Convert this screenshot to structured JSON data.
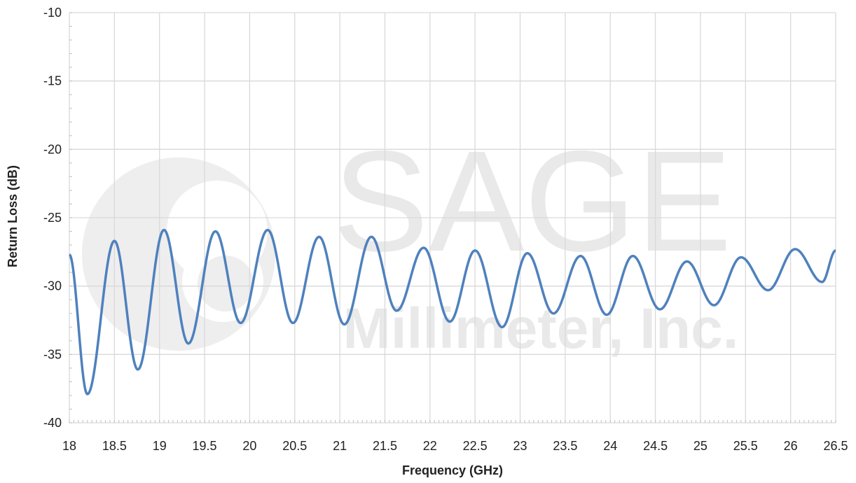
{
  "chart_data": {
    "type": "line",
    "title": "",
    "xlabel": "Frequency (GHz)",
    "ylabel": "Return Loss (dB)",
    "xlim": [
      18,
      26.5
    ],
    "ylim": [
      -40,
      -10
    ],
    "x_ticks": [
      "18",
      "18.5",
      "19",
      "19.5",
      "20",
      "20.5",
      "21",
      "21.5",
      "22",
      "22.5",
      "23",
      "23.5",
      "24",
      "24.5",
      "25",
      "25.5",
      "26",
      "26.5"
    ],
    "y_ticks": [
      "-10",
      "-15",
      "-20",
      "-25",
      "-30",
      "-35",
      "-40"
    ],
    "grid": true,
    "line_color": "#4f81bd",
    "watermark": {
      "word": "SAGE",
      "subtitle": "Millimeter, Inc."
    },
    "series": [
      {
        "extrema": [
          [
            18.0,
            -27.7
          ],
          [
            18.2,
            -37.9
          ],
          [
            18.5,
            -26.7
          ],
          [
            18.76,
            -36.1
          ],
          [
            19.05,
            -25.9
          ],
          [
            19.32,
            -34.2
          ],
          [
            19.62,
            -26.0
          ],
          [
            19.9,
            -32.7
          ],
          [
            20.2,
            -25.9
          ],
          [
            20.48,
            -32.7
          ],
          [
            20.77,
            -26.4
          ],
          [
            21.05,
            -32.8
          ],
          [
            21.35,
            -26.4
          ],
          [
            21.63,
            -31.8
          ],
          [
            21.93,
            -27.2
          ],
          [
            22.22,
            -32.6
          ],
          [
            22.5,
            -27.4
          ],
          [
            22.8,
            -33.0
          ],
          [
            23.08,
            -27.6
          ],
          [
            23.37,
            -32.0
          ],
          [
            23.67,
            -27.8
          ],
          [
            23.96,
            -32.1
          ],
          [
            24.25,
            -27.8
          ],
          [
            24.55,
            -31.7
          ],
          [
            24.85,
            -28.2
          ],
          [
            25.15,
            -31.4
          ],
          [
            25.45,
            -27.9
          ],
          [
            25.75,
            -30.3
          ],
          [
            26.05,
            -27.3
          ],
          [
            26.35,
            -29.7
          ],
          [
            26.5,
            -27.4
          ]
        ]
      }
    ]
  }
}
